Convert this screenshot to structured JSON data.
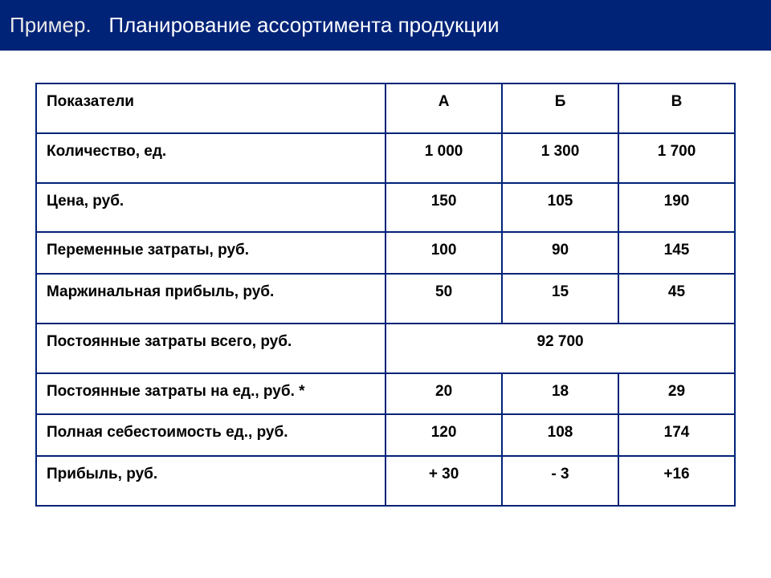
{
  "header": {
    "prefix": "Пример.",
    "title": "Планирование ассортимента продукции"
  },
  "table": {
    "columns": [
      "Показатели",
      "А",
      "Б",
      "В"
    ],
    "rows": [
      {
        "label": "Количество, ед.",
        "a": "1 000",
        "b": "1 300",
        "c": "1 700"
      },
      {
        "label": "Цена, руб.",
        "a": "150",
        "b": "105",
        "c": "190"
      },
      {
        "label": "Переменные затраты, руб.",
        "a": "100",
        "b": "90",
        "c": "145",
        "short": true
      },
      {
        "label": "Маржинальная прибыль, руб.",
        "a": "50",
        "b": "15",
        "c": "45"
      },
      {
        "label": "Постоянные затраты всего, руб.",
        "merged": "92 700"
      },
      {
        "label": "Постоянные затраты на ед., руб. *",
        "a": "20",
        "b": "18",
        "c": "29",
        "short": true
      },
      {
        "label": "Полная себестоимость ед., руб.",
        "a": "120",
        "b": "108",
        "c": "174",
        "short": true
      },
      {
        "label": "Прибыль, руб.",
        "a": "+ 30",
        "b": "- 3",
        "c": "+16"
      }
    ]
  },
  "colors": {
    "header_bg": "#002378",
    "header_text": "#ffffff",
    "border": "#002378",
    "cell_text": "#000000",
    "page_bg": "#ffffff"
  }
}
